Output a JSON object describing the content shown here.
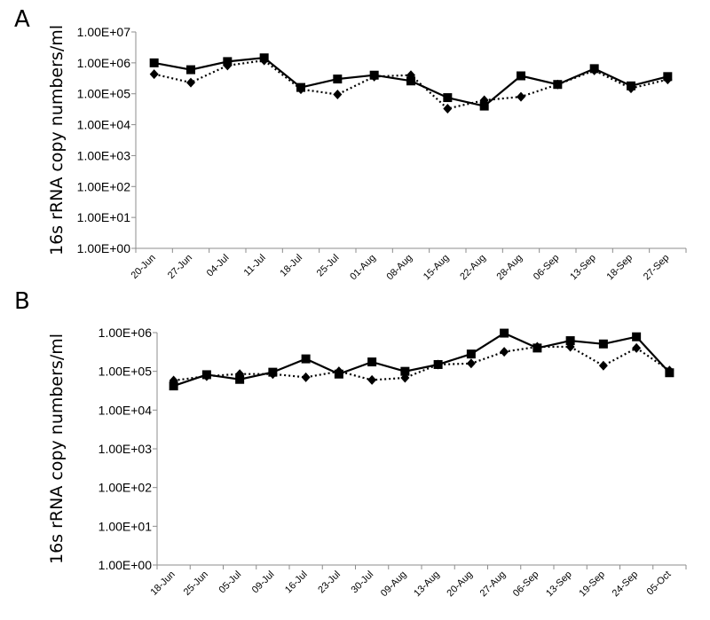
{
  "chart_data": [
    {
      "panel": "A",
      "type": "line",
      "ylabel": "16s rRNA copy numbers/ml",
      "yscale": "log",
      "ylim": [
        1,
        10000000
      ],
      "yticks": [
        "1.00E+00",
        "1.00E+01",
        "1.00E+02",
        "1.00E+03",
        "1.00E+04",
        "1.00E+05",
        "1.00E+06",
        "1.00E+07"
      ],
      "categories": [
        "20-Jun",
        "27-Jun",
        "04-Jul",
        "11-Jul",
        "18-Jul",
        "25-Jul",
        "01-Aug",
        "08-Aug",
        "15-Aug",
        "22-Aug",
        "28-Aug",
        "06-Sep",
        "13-Sep",
        "18-Sep",
        "27-Sep"
      ],
      "series": [
        {
          "marker": "square",
          "line": "solid",
          "values": [
            1000000,
            600000,
            1100000,
            1450000,
            160000,
            300000,
            400000,
            260000,
            75000,
            40000,
            380000,
            200000,
            650000,
            180000,
            360000
          ]
        },
        {
          "marker": "diamond",
          "line": "dotted",
          "values": [
            430000,
            230000,
            820000,
            1200000,
            140000,
            95000,
            360000,
            400000,
            33000,
            62000,
            80000,
            200000,
            570000,
            150000,
            290000
          ]
        }
      ]
    },
    {
      "panel": "B",
      "type": "line",
      "ylabel": "16s rRNA copy numbers/ml",
      "yscale": "log",
      "ylim": [
        1,
        1000000
      ],
      "yticks": [
        "1.00E+00",
        "1.00E+01",
        "1.00E+02",
        "1.00E+03",
        "1.00E+04",
        "1.00E+05",
        "1.00E+06"
      ],
      "categories": [
        "18-Jun",
        "25-Jun",
        "05-Jul",
        "09-Jul",
        "16-Jul",
        "23-Jul",
        "30-Jul",
        "09-Aug",
        "13-Aug",
        "20-Aug",
        "27-Aug",
        "06-Sep",
        "13-Sep",
        "19-Sep",
        "24-Sep",
        "05-Oct"
      ],
      "series": [
        {
          "marker": "square",
          "line": "solid",
          "values": [
            42000,
            82000,
            62000,
            95000,
            210000,
            85000,
            175000,
            100000,
            150000,
            280000,
            970000,
            400000,
            620000,
            510000,
            780000,
            92000
          ]
        },
        {
          "marker": "diamond",
          "line": "dotted",
          "values": [
            58000,
            75000,
            85000,
            85000,
            70000,
            100000,
            60000,
            68000,
            150000,
            160000,
            320000,
            430000,
            430000,
            140000,
            400000,
            105000
          ]
        }
      ]
    }
  ]
}
